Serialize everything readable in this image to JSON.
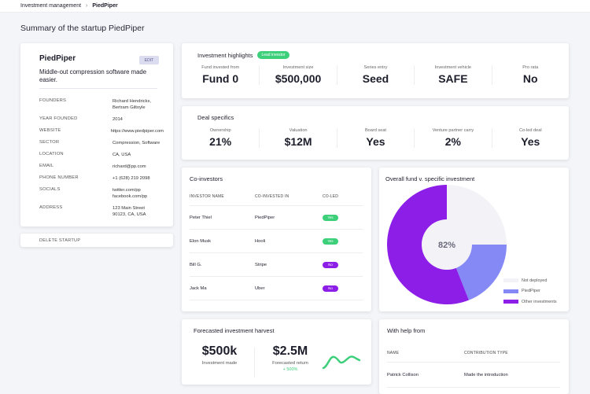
{
  "breadcrumb": {
    "root": "Investment management",
    "separator": "›",
    "current": "PiedPiper"
  },
  "page_title": "Summary of the startup PiedPiper",
  "profile": {
    "name": "PiedPiper",
    "edit_label": "EDIT",
    "tagline": "Middle-out compression software made easier.",
    "fields": [
      {
        "key": "FOUNDERS",
        "value": "Richard Hendricks,\nBertram Giltoyle"
      },
      {
        "key": "YEAR FOUNDED",
        "value": "2014"
      },
      {
        "key": "WEBSITE",
        "value": "https://www.piedpiper.com"
      },
      {
        "key": "SECTOR",
        "value": "Compression, Software"
      },
      {
        "key": "LOCATION",
        "value": "CA, USA"
      },
      {
        "key": "EMAIL",
        "value": "richard@pp.com"
      },
      {
        "key": "PHONE NUMBER",
        "value": "+1 (628) 219 2098"
      },
      {
        "key": "SOCIALS",
        "value": "twitter.com/pp\nfacebook.com/pp"
      },
      {
        "key": "ADDRESS",
        "value": "123 Main Street\n90123, CA, USA"
      }
    ],
    "delete_label": "DELETE STARTUP"
  },
  "highlights": {
    "title": "Investment highlights",
    "badge": "Lead investor",
    "items": [
      {
        "label": "Fund invested from",
        "value": "Fund 0"
      },
      {
        "label": "Investment size",
        "value": "$500,000"
      },
      {
        "label": "Series entry",
        "value": "Seed"
      },
      {
        "label": "Investment vehicle",
        "value": "SAFE"
      },
      {
        "label": "Pro rata",
        "value": "No"
      }
    ]
  },
  "deal": {
    "title": "Deal specifics",
    "items": [
      {
        "label": "Ownership",
        "value": "21%"
      },
      {
        "label": "Valuation",
        "value": "$12M"
      },
      {
        "label": "Board seat",
        "value": "Yes"
      },
      {
        "label": "Venture partner carry",
        "value": "2%"
      },
      {
        "label": "Co-led deal",
        "value": "Yes"
      }
    ]
  },
  "coinvestors": {
    "title": "Co-investors",
    "headers": [
      "INVESTOR NAME",
      "CO-INVESTED IN",
      "CO-LED"
    ],
    "rows": [
      {
        "name": "Peter Thiel",
        "company": "PiedPiper",
        "coled": "Yes"
      },
      {
        "name": "Elon Musk",
        "company": "Hooli",
        "coled": "Yes"
      },
      {
        "name": "Bill G.",
        "company": "Stripe",
        "coled": "No"
      },
      {
        "name": "Jack Ma",
        "company": "Uber",
        "coled": "No"
      }
    ],
    "yes_color": "#3ecf7b",
    "no_color": "#8d1ee8"
  },
  "fund_chart": {
    "title": "Overall fund v. specific investment",
    "center_label": "82%",
    "chart_data": {
      "type": "pie",
      "title": "Overall fund v. specific investment",
      "labels": [
        "Not deployed",
        "PiedPiper",
        "Other investments"
      ],
      "values": [
        25,
        19,
        56
      ],
      "colors": [
        "#f3f3f7",
        "#8589f5",
        "#8d1ee8"
      ],
      "legend": "bottom-right"
    }
  },
  "harvest": {
    "title": "Forecasted investment harvest",
    "made_value": "$500k",
    "made_label": "Investment made",
    "return_value": "$2.5M",
    "return_label": "Forecasted return",
    "return_change": "+ 500%",
    "sparkline_color": "#3ecf7b"
  },
  "help": {
    "title": "With help from",
    "headers": [
      "NAME",
      "CONTRIBUTION TYPE"
    ],
    "rows": [
      {
        "name": "Patrick Collison",
        "type": "Made the introduction"
      }
    ]
  }
}
